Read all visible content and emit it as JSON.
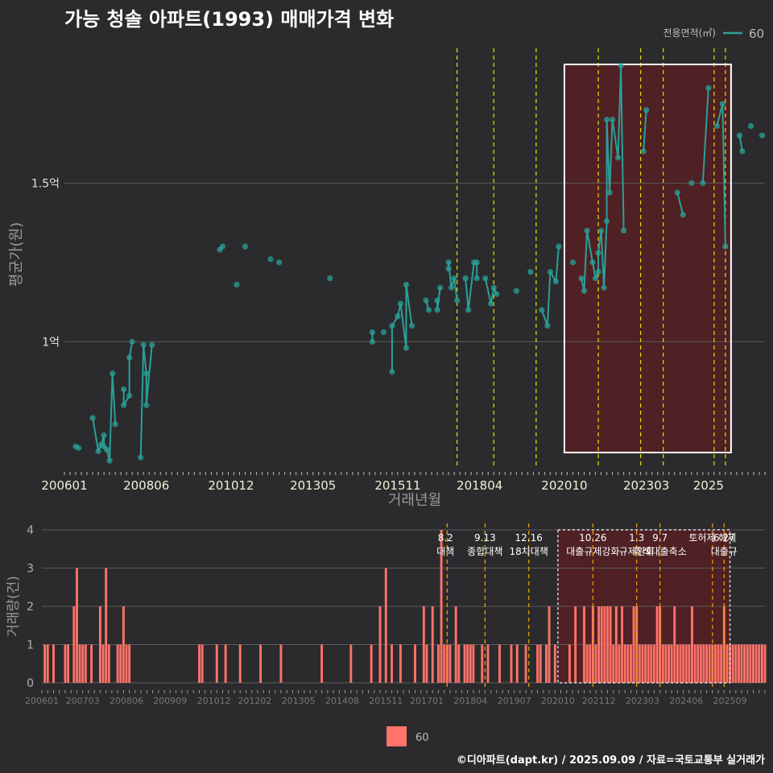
{
  "title": "가능 청솔 아파트(1993) 매매가격 변화",
  "caption": "©디아파트(dapt.kr) / 2025.09.09 / 자료=국토교통부 실거래가",
  "colors": {
    "background": "#2b2b2d",
    "price_line": "#2aa198",
    "volume_bar": "#ff7369",
    "policy_line_top": "#e8e000",
    "policy_line_bottom": "#f0a500",
    "highlight_fill": "#5c1e22",
    "grid": "#5a5a5a"
  },
  "chart_data": [
    {
      "type": "line",
      "panel": "price",
      "title": "",
      "xlabel": "거래년월",
      "ylabel": "평균가(원)",
      "legend_title": "전용면적(㎡)",
      "legend_position": "top-right",
      "x_ticks": [
        "200601",
        "200806",
        "201012",
        "201305",
        "201511",
        "201804",
        "202010",
        "202303",
        "2025"
      ],
      "y_ticks": [
        {
          "value": 1.0,
          "label": "1억"
        },
        {
          "value": 1.5,
          "label": "1.5억"
        }
      ],
      "ylim": [
        0.6,
        1.95
      ],
      "y_unit": "억",
      "series": [
        {
          "name": "60",
          "points": [
            [
              "2006-05",
              0.67
            ],
            [
              "2006-06",
              0.665
            ],
            [
              "2006-11",
              0.76
            ],
            [
              "2007-01",
              0.655
            ],
            [
              "2007-02",
              0.675
            ],
            [
              "2007-03",
              0.705
            ],
            [
              "2007-03",
              0.67
            ],
            [
              "2007-04",
              0.66
            ],
            [
              "2007-05",
              0.625
            ],
            [
              "2007-06",
              0.9
            ],
            [
              "2007-07",
              0.74
            ],
            [
              "2007-10",
              0.85
            ],
            [
              "2007-10",
              0.8
            ],
            [
              "2007-12",
              0.83
            ],
            [
              "2007-12",
              0.95
            ],
            [
              "2008-01",
              1.0
            ],
            [
              "2008-04",
              0.635
            ],
            [
              "2008-05",
              0.99
            ],
            [
              "2008-06",
              0.9
            ],
            [
              "2008-06",
              0.8
            ],
            [
              "2008-08",
              0.99
            ],
            [
              "2010-08",
              1.29
            ],
            [
              "2010-09",
              1.3
            ],
            [
              "2011-02",
              1.18
            ],
            [
              "2011-05",
              1.3
            ],
            [
              "2012-02",
              1.26
            ],
            [
              "2012-05",
              1.25
            ],
            [
              "2013-11",
              1.2
            ],
            [
              "2015-02",
              1.03
            ],
            [
              "2015-02",
              1.0
            ],
            [
              "2015-06",
              1.03
            ],
            [
              "2015-09",
              0.905
            ],
            [
              "2015-09",
              1.05
            ],
            [
              "2015-11",
              1.08
            ],
            [
              "2015-12",
              1.12
            ],
            [
              "2016-02",
              0.98
            ],
            [
              "2016-02",
              1.18
            ],
            [
              "2016-04",
              1.05
            ],
            [
              "2016-09",
              1.13
            ],
            [
              "2016-10",
              1.1
            ],
            [
              "2017-01",
              1.13
            ],
            [
              "2017-01",
              1.1
            ],
            [
              "2017-02",
              1.17
            ],
            [
              "2017-05",
              1.23
            ],
            [
              "2017-05",
              1.25
            ],
            [
              "2017-06",
              1.17
            ],
            [
              "2017-07",
              1.2
            ],
            [
              "2017-08",
              1.13
            ],
            [
              "2017-11",
              1.2
            ],
            [
              "2017-12",
              1.1
            ],
            [
              "2018-02",
              1.25
            ],
            [
              "2018-03",
              1.25
            ],
            [
              "2018-03",
              1.2
            ],
            [
              "2018-06",
              1.2
            ],
            [
              "2018-08",
              1.12
            ],
            [
              "2018-09",
              1.17
            ],
            [
              "2018-10",
              1.15
            ],
            [
              "2019-05",
              1.16
            ],
            [
              "2019-10",
              1.22
            ],
            [
              "2020-02",
              1.1
            ],
            [
              "2020-04",
              1.05
            ],
            [
              "2020-05",
              1.22
            ],
            [
              "2020-07",
              1.19
            ],
            [
              "2020-08",
              1.3
            ],
            [
              "2021-01",
              1.25
            ],
            [
              "2021-04",
              1.2
            ],
            [
              "2021-05",
              1.16
            ],
            [
              "2021-06",
              1.35
            ],
            [
              "2021-08",
              1.25
            ],
            [
              "2021-09",
              1.2
            ],
            [
              "2021-10",
              1.22
            ],
            [
              "2021-10",
              1.28
            ],
            [
              "2021-11",
              1.35
            ],
            [
              "2021-12",
              1.17
            ],
            [
              "2022-01",
              1.38
            ],
            [
              "2022-01",
              1.7
            ],
            [
              "2022-02",
              1.47
            ],
            [
              "2022-03",
              1.7
            ],
            [
              "2022-05",
              1.58
            ],
            [
              "2022-06",
              1.87
            ],
            [
              "2022-07",
              1.35
            ],
            [
              "2023-02",
              1.6
            ],
            [
              "2023-03",
              1.73
            ],
            [
              "2024-02",
              1.47
            ],
            [
              "2024-04",
              1.4
            ],
            [
              "2024-07",
              1.5
            ],
            [
              "2024-11",
              1.5
            ],
            [
              "2025-01",
              1.8
            ],
            [
              "2025-04",
              1.68
            ],
            [
              "2025-06",
              1.75
            ],
            [
              "2025-07",
              1.3
            ],
            [
              "2025-12",
              1.65
            ],
            [
              "2026-01",
              1.6
            ],
            [
              "2026-04",
              1.68
            ],
            [
              "2026-08",
              1.65
            ]
          ]
        }
      ],
      "policy_dates": [
        "2017-08",
        "2018-09",
        "2019-12",
        "2021-10",
        "2023-01",
        "2023-09",
        "2025-03",
        "2025-07"
      ],
      "highlight": {
        "x_from": "2020-10",
        "x_to": "2025-09"
      }
    },
    {
      "type": "bar",
      "panel": "volume",
      "title": "",
      "xlabel": "",
      "ylabel": "거래량(건)",
      "y_ticks": [
        0,
        1,
        2,
        3,
        4
      ],
      "ylim": [
        0,
        4
      ],
      "x_ticks": [
        "200601",
        "200703",
        "200806",
        "200909",
        "201012",
        "201202",
        "201305",
        "201408",
        "201511",
        "201701",
        "201804",
        "201907",
        "202010",
        "202112",
        "202303",
        "202406",
        "202509"
      ],
      "legend": [
        {
          "name": "60"
        }
      ],
      "legend_position": "bottom",
      "series": [
        {
          "name": "60",
          "bars": [
            [
              "2006-02",
              1
            ],
            [
              "2006-03",
              1
            ],
            [
              "2006-05",
              1
            ],
            [
              "2006-09",
              1
            ],
            [
              "2006-10",
              1
            ],
            [
              "2006-12",
              2
            ],
            [
              "2007-01",
              3
            ],
            [
              "2007-02",
              1
            ],
            [
              "2007-03",
              1
            ],
            [
              "2007-04",
              1
            ],
            [
              "2007-06",
              1
            ],
            [
              "2007-09",
              2
            ],
            [
              "2007-10",
              1
            ],
            [
              "2007-11",
              3
            ],
            [
              "2007-12",
              1
            ],
            [
              "2008-03",
              1
            ],
            [
              "2008-04",
              1
            ],
            [
              "2008-05",
              2
            ],
            [
              "2008-06",
              1
            ],
            [
              "2008-07",
              1
            ],
            [
              "2010-07",
              1
            ],
            [
              "2010-08",
              1
            ],
            [
              "2011-01",
              1
            ],
            [
              "2011-04",
              1
            ],
            [
              "2011-09",
              1
            ],
            [
              "2012-04",
              1
            ],
            [
              "2012-11",
              1
            ],
            [
              "2014-01",
              1
            ],
            [
              "2014-11",
              1
            ],
            [
              "2015-06",
              1
            ],
            [
              "2015-09",
              2
            ],
            [
              "2015-11",
              3
            ],
            [
              "2016-01",
              1
            ],
            [
              "2016-04",
              1
            ],
            [
              "2016-09",
              1
            ],
            [
              "2016-12",
              2
            ],
            [
              "2017-01",
              1
            ],
            [
              "2017-03",
              2
            ],
            [
              "2017-05",
              1
            ],
            [
              "2017-06",
              4
            ],
            [
              "2017-07",
              1
            ],
            [
              "2017-08",
              1
            ],
            [
              "2017-09",
              1
            ],
            [
              "2017-11",
              2
            ],
            [
              "2017-12",
              1
            ],
            [
              "2018-02",
              1
            ],
            [
              "2018-03",
              1
            ],
            [
              "2018-04",
              1
            ],
            [
              "2018-05",
              1
            ],
            [
              "2018-08",
              1
            ],
            [
              "2018-10",
              1
            ],
            [
              "2019-02",
              1
            ],
            [
              "2019-06",
              1
            ],
            [
              "2019-08",
              1
            ],
            [
              "2019-11",
              1
            ],
            [
              "2020-03",
              1
            ],
            [
              "2020-04",
              1
            ],
            [
              "2020-06",
              1
            ],
            [
              "2020-07",
              2
            ],
            [
              "2020-09",
              1
            ],
            [
              "2021-02",
              1
            ],
            [
              "2021-04",
              2
            ],
            [
              "2021-07",
              2
            ],
            [
              "2021-08",
              1
            ],
            [
              "2021-09",
              1
            ],
            [
              "2021-10",
              2
            ],
            [
              "2021-11",
              1
            ],
            [
              "2021-12",
              2
            ],
            [
              "2022-01",
              2
            ],
            [
              "2022-02",
              2
            ],
            [
              "2022-03",
              2
            ],
            [
              "2022-04",
              2
            ],
            [
              "2022-05",
              1
            ],
            [
              "2022-06",
              2
            ],
            [
              "2022-07",
              1
            ],
            [
              "2022-08",
              2
            ],
            [
              "2022-09",
              1
            ],
            [
              "2022-10",
              1
            ],
            [
              "2022-11",
              1
            ],
            [
              "2022-12",
              2
            ],
            [
              "2023-01",
              2
            ],
            [
              "2023-02",
              1
            ],
            [
              "2023-03",
              1
            ],
            [
              "2023-04",
              1
            ],
            [
              "2023-05",
              1
            ],
            [
              "2023-06",
              1
            ],
            [
              "2023-07",
              1
            ],
            [
              "2023-08",
              2
            ],
            [
              "2023-09",
              2
            ],
            [
              "2023-10",
              1
            ],
            [
              "2023-11",
              1
            ],
            [
              "2023-12",
              1
            ],
            [
              "2024-01",
              1
            ],
            [
              "2024-02",
              2
            ],
            [
              "2024-03",
              1
            ],
            [
              "2024-04",
              1
            ],
            [
              "2024-05",
              1
            ],
            [
              "2024-06",
              1
            ],
            [
              "2024-07",
              1
            ],
            [
              "2024-08",
              2
            ],
            [
              "2024-09",
              1
            ],
            [
              "2024-10",
              1
            ],
            [
              "2024-11",
              1
            ],
            [
              "2024-12",
              1
            ],
            [
              "2025-01",
              1
            ],
            [
              "2025-02",
              1
            ],
            [
              "2025-03",
              1
            ],
            [
              "2025-04",
              1
            ],
            [
              "2025-05",
              1
            ],
            [
              "2025-06",
              1
            ],
            [
              "2025-07",
              2
            ],
            [
              "2025-08",
              1
            ],
            [
              "2025-09",
              1
            ],
            [
              "2025-10",
              1
            ],
            [
              "2025-11",
              1
            ],
            [
              "2025-12",
              1
            ],
            [
              "2026-01",
              1
            ],
            [
              "2026-02",
              1
            ],
            [
              "2026-03",
              1
            ],
            [
              "2026-04",
              1
            ],
            [
              "2026-05",
              1
            ],
            [
              "2026-06",
              1
            ],
            [
              "2026-07",
              1
            ],
            [
              "2026-08",
              1
            ],
            [
              "2026-09",
              1
            ]
          ]
        }
      ],
      "policy_annotations": [
        {
          "x": "2017-08",
          "date": "8.2",
          "text": "대책"
        },
        {
          "x": "2018-09",
          "date": "9.13",
          "text": "종합대책"
        },
        {
          "x": "2019-12",
          "date": "12.16",
          "text": "18차대책"
        },
        {
          "x": "2021-10",
          "date": "10.26",
          "text": "대출규제강화"
        },
        {
          "x": "2023-01",
          "date": "1.3",
          "text": "규제완화"
        },
        {
          "x": "2023-09",
          "date": "9.7",
          "text": "특례대출축소"
        },
        {
          "x": "2025-03",
          "date": "",
          "text": "토허제 해제"
        },
        {
          "x": "2025-07",
          "date": "6.27",
          "text": "대출규"
        }
      ],
      "highlight": {
        "x_from": "2020-10",
        "x_to": "2025-09"
      }
    }
  ]
}
